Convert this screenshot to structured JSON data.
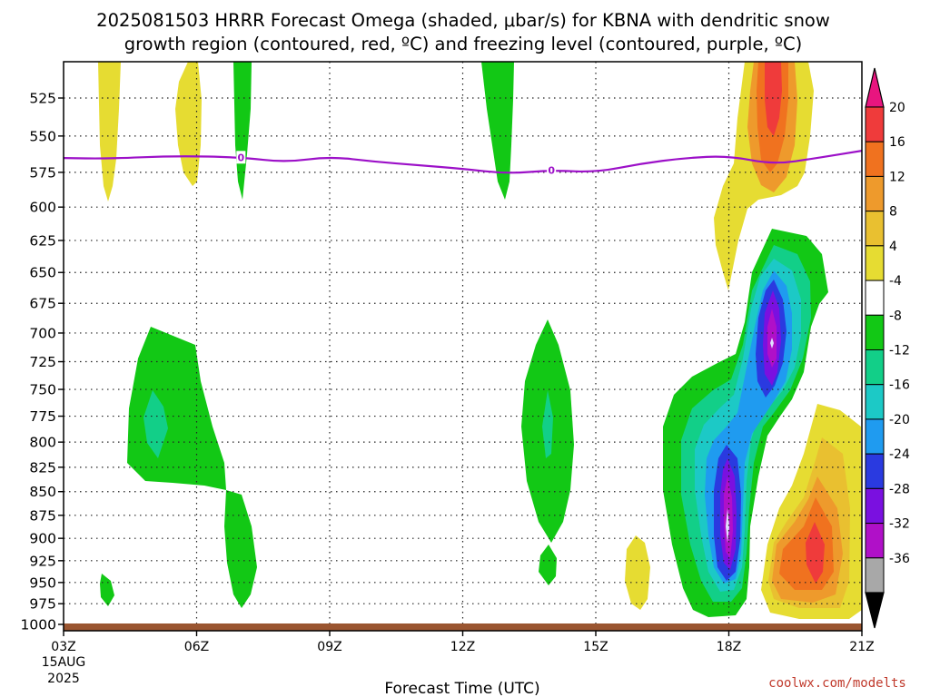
{
  "title": {
    "line1": "2025081503 HRRR Forecast Omega (shaded, μbar/s) for KBNA with dendritic snow",
    "line2": "growth region (contoured, red, ºC) and freezing level (contoured, purple, ºC)"
  },
  "credit": "coolwx.com/modelts",
  "chart_data": {
    "type": "time-height contour",
    "xlabel": "Forecast Time (UTC)",
    "x_ticks": [
      "03Z",
      "06Z",
      "09Z",
      "12Z",
      "15Z",
      "18Z",
      "21Z"
    ],
    "x_start_date": [
      "15AUG",
      "2025"
    ],
    "x_range_hours_utc": [
      3,
      21
    ],
    "y_ticks": [
      "525",
      "550",
      "575",
      "600",
      "625",
      "650",
      "675",
      "700",
      "725",
      "750",
      "775",
      "800",
      "825",
      "850",
      "875",
      "900",
      "925",
      "950",
      "975",
      "1000"
    ],
    "y_range_mb": [
      1000,
      500
    ],
    "y_axis": "pressure (mb), logarithmic, inverted",
    "grid": "dotted",
    "colorbar": {
      "labels": [
        "20",
        "16",
        "12",
        "8",
        "4",
        "-4",
        "-8",
        "-12",
        "-16",
        "-20",
        "-24",
        "-28",
        "-32",
        "-36"
      ],
      "colors": [
        "#e8157f",
        "#ef3b3b",
        "#f0721f",
        "#ee9a2c",
        "#e9c030",
        "#e6dc32",
        "#ffffff",
        "#12c815",
        "#12cf88",
        "#1cc9c6",
        "#1f9bf0",
        "#2a3ae0",
        "#7a10e0",
        "#b010c8",
        "#a8a8a8",
        "#000000"
      ]
    },
    "freezing_level": {
      "color": "#9c10c8",
      "contour_label": "0",
      "points": [
        [
          3,
          565
        ],
        [
          4,
          565.5
        ],
        [
          5.5,
          563.5
        ],
        [
          7,
          564.5
        ],
        [
          8,
          568
        ],
        [
          9,
          564
        ],
        [
          10,
          567.5
        ],
        [
          11,
          570
        ],
        [
          12,
          572.5
        ],
        [
          13,
          576
        ],
        [
          14,
          573.5
        ],
        [
          15,
          575
        ],
        [
          16,
          569
        ],
        [
          17,
          565
        ],
        [
          18,
          563.5
        ],
        [
          19,
          569.5
        ],
        [
          20,
          565
        ],
        [
          21,
          560
        ]
      ]
    },
    "surface_color": "#9a5530",
    "omega_areas": [
      {
        "value": 6,
        "time_utc": [
          3.8,
          4.2
        ],
        "pres_mb": [
          505,
          598
        ],
        "label": "positive omega"
      },
      {
        "value": 6,
        "time_utc": [
          5.6,
          6.1
        ],
        "pres_mb": [
          505,
          583
        ],
        "label": "positive omega"
      },
      {
        "value": -6,
        "time_utc": [
          6.9,
          7.3
        ],
        "pres_mb": [
          505,
          596
        ],
        "label": "negative omega"
      },
      {
        "value": -6,
        "time_utc": [
          12.5,
          13.3
        ],
        "pres_mb": [
          505,
          597
        ],
        "label": "negative omega"
      },
      {
        "value": -6,
        "time_utc": [
          4.5,
          6.6
        ],
        "pres_mb": [
          695,
          845
        ],
        "label": "negative omega"
      },
      {
        "value": -10,
        "time_utc": [
          4.9,
          5.3
        ],
        "pres_mb": [
          763,
          810
        ],
        "label": "negative omega"
      },
      {
        "value": -6,
        "time_utc": [
          3.8,
          4.1
        ],
        "pres_mb": [
          945,
          985
        ],
        "label": "negative omega"
      },
      {
        "value": -6,
        "time_utc": [
          6.7,
          7.5
        ],
        "pres_mb": [
          848,
          985
        ],
        "label": "negative omega"
      },
      {
        "value": -6,
        "time_utc": [
          13.4,
          14.5
        ],
        "pres_mb": [
          685,
          910
        ],
        "label": "negative omega"
      },
      {
        "value": -6,
        "time_utc": [
          13.8,
          14.2
        ],
        "pres_mb": [
          910,
          945
        ],
        "label": "negative omega"
      },
      {
        "value": 6,
        "time_utc": [
          15.7,
          16.3
        ],
        "pres_mb": [
          900,
          985
        ],
        "label": "positive omega"
      },
      {
        "value": -6,
        "time_utc": [
          16.7,
          20.3
        ],
        "pres_mb": [
          620,
          990
        ],
        "label": "negative omega"
      },
      {
        "value": -30,
        "time_utc": [
          17.8,
          18.2
        ],
        "pres_mb": [
          830,
          950
        ],
        "label": "strongest upward motion"
      },
      {
        "value": -30,
        "time_utc": [
          18.8,
          19.2
        ],
        "pres_mb": [
          670,
          760
        ],
        "label": "strongest upward motion"
      },
      {
        "value": 6,
        "time_utc": [
          17.7,
          20.7
        ],
        "pres_mb": [
          505,
          665
        ],
        "label": "positive omega"
      },
      {
        "value": 18,
        "time_utc": [
          18.8,
          19.2
        ],
        "pres_mb": [
          505,
          560
        ],
        "label": "positive omega"
      },
      {
        "value": 6,
        "time_utc": [
          19.0,
          21.0
        ],
        "pres_mb": [
          780,
          995
        ],
        "label": "positive omega"
      },
      {
        "value": 18,
        "time_utc": [
          19.7,
          20.2
        ],
        "pres_mb": [
          880,
          955
        ],
        "label": "positive omega"
      }
    ]
  }
}
